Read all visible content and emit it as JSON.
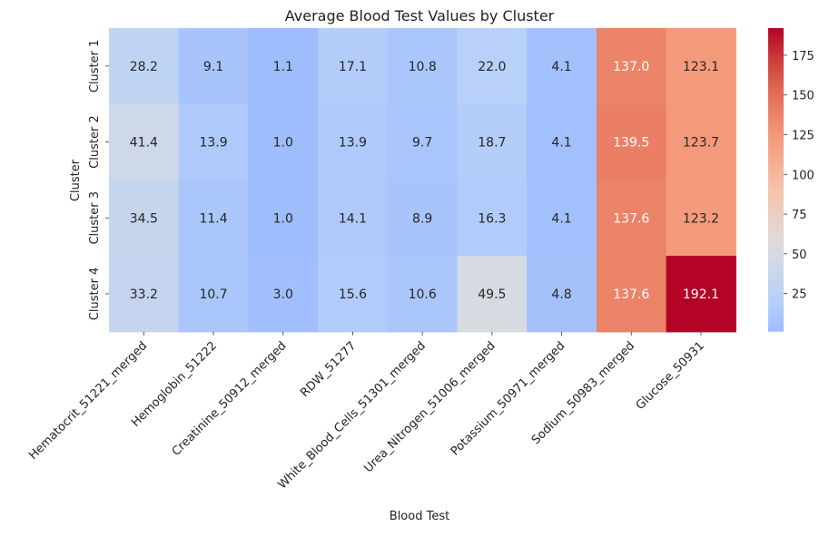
{
  "chart_data": {
    "type": "heatmap",
    "title": "Average Blood Test Values by Cluster",
    "xlabel": "Blood Test",
    "ylabel": "Cluster",
    "rows": [
      "Cluster 1",
      "Cluster 2",
      "Cluster 3",
      "Cluster 4"
    ],
    "columns": [
      "Hematocrit_51221_merged",
      "Hemoglobin_51222",
      "Creatinine_50912_merged",
      "RDW_51277",
      "White_Blood_Cells_51301_merged",
      "Urea_Nitrogen_51006_merged",
      "Potassium_50971_merged",
      "Sodium_50983_merged",
      "Glucose_50931"
    ],
    "values": [
      [
        28.2,
        9.1,
        1.1,
        17.1,
        10.8,
        22.0,
        4.1,
        137.0,
        123.1
      ],
      [
        41.4,
        13.9,
        1.0,
        13.9,
        9.7,
        18.7,
        4.1,
        139.5,
        123.7
      ],
      [
        34.5,
        11.4,
        1.0,
        14.1,
        8.9,
        16.3,
        4.1,
        137.6,
        123.2
      ],
      [
        33.2,
        10.7,
        3.0,
        15.6,
        10.6,
        49.5,
        4.8,
        137.6,
        192.1
      ]
    ],
    "value_format": "0.1f",
    "colormap": "coolwarm",
    "colorbar": {
      "ticks": [
        25,
        50,
        75,
        100,
        125,
        150,
        175
      ],
      "range": [
        0.9,
        192.1
      ]
    }
  }
}
